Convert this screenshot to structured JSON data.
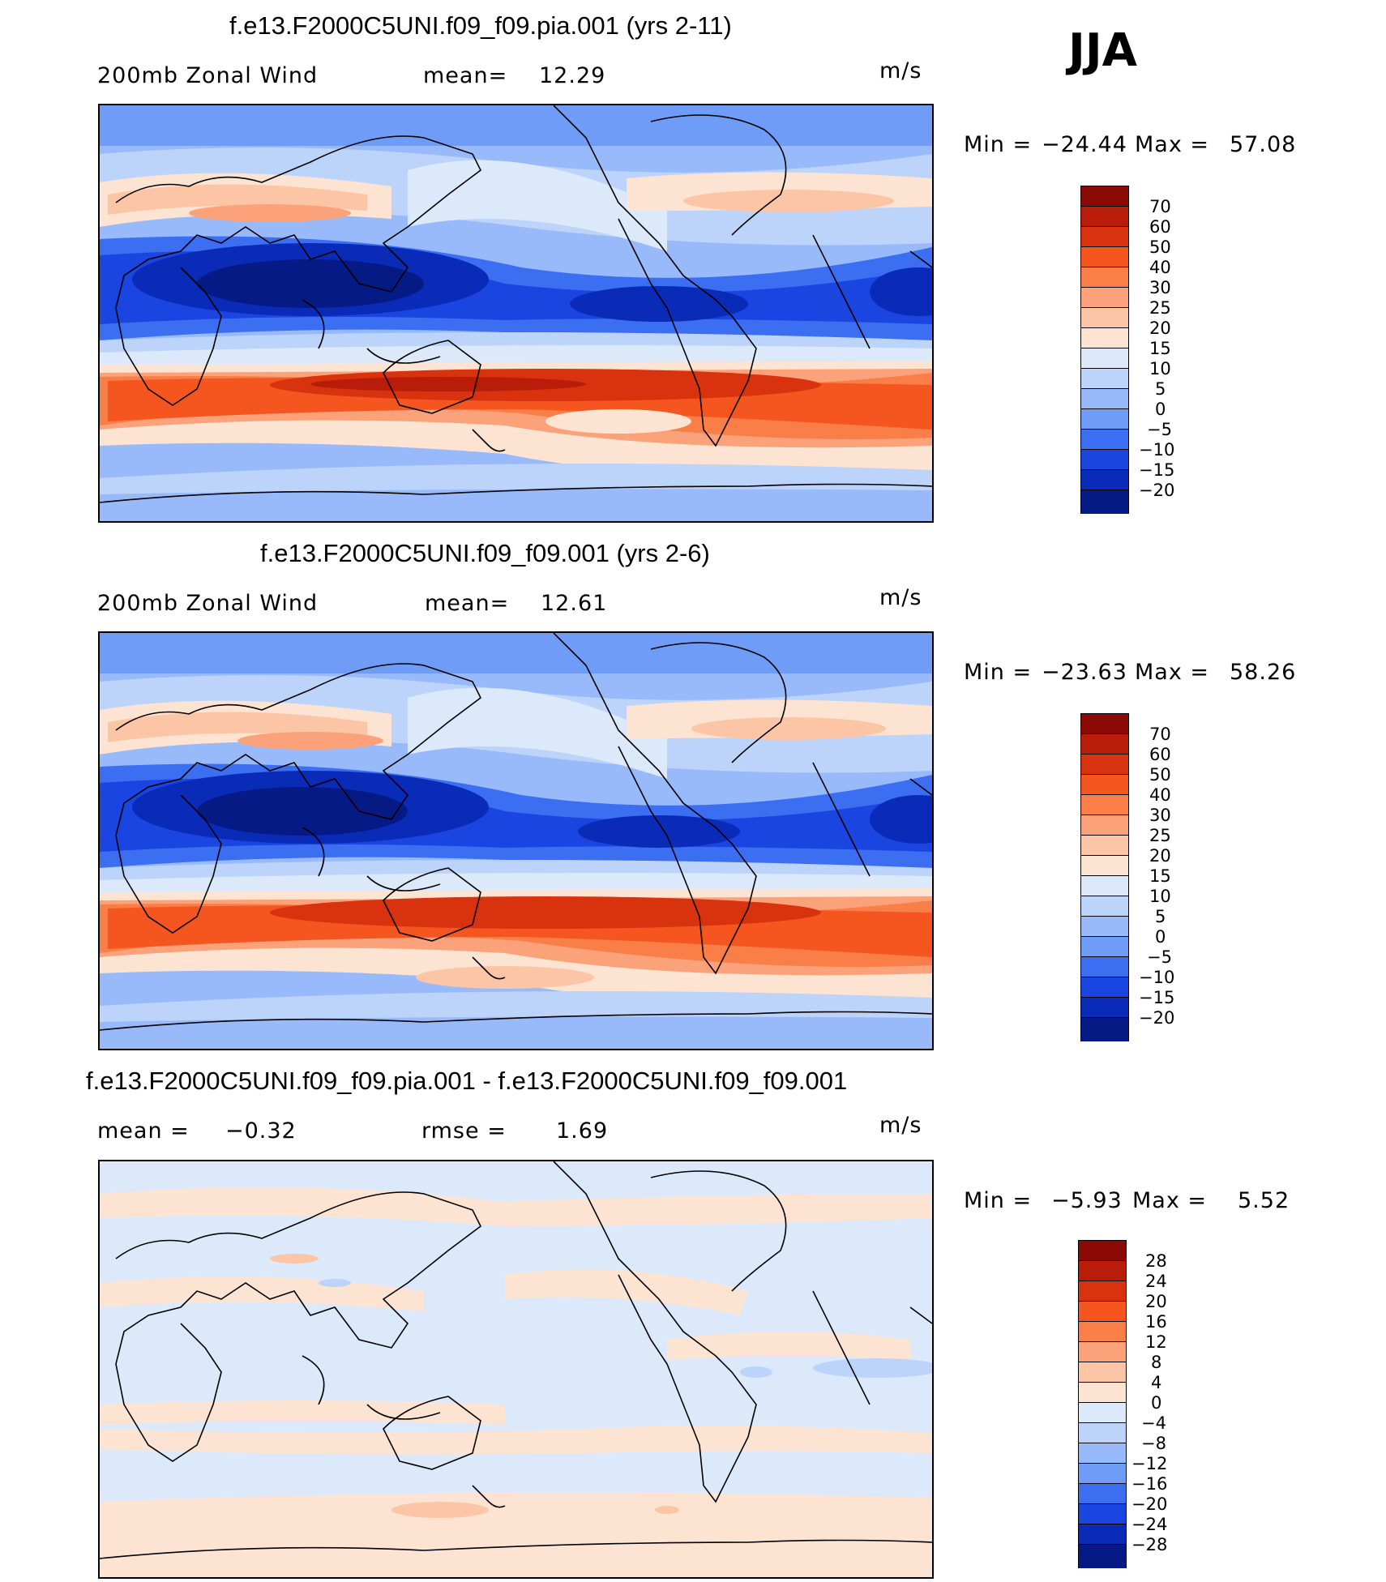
{
  "season": "JJA",
  "panels": [
    {
      "title": "f.e13.F2000C5UNI.f09_f09.pia.001 (yrs 2-11)",
      "field": "200mb Zonal Wind",
      "stat_left": "",
      "stat_label": "mean=",
      "stat_value": "12.29",
      "units": "m/s",
      "min_label": "Min =",
      "min_value": "−24.44",
      "max_label": "Max =",
      "max_value": "57.08",
      "colorbar_labels": [
        "70",
        "60",
        "50",
        "40",
        "30",
        "25",
        "20",
        "15",
        "10",
        "5",
        "0",
        "−5",
        "−10",
        "−15",
        "−20"
      ]
    },
    {
      "title": "f.e13.F2000C5UNI.f09_f09.001 (yrs 2-6)",
      "field": "200mb Zonal Wind",
      "stat_left": "",
      "stat_label": "mean=",
      "stat_value": "12.61",
      "units": "m/s",
      "min_label": "Min =",
      "min_value": "−23.63",
      "max_label": "Max =",
      "max_value": "58.26",
      "colorbar_labels": [
        "70",
        "60",
        "50",
        "40",
        "30",
        "25",
        "20",
        "15",
        "10",
        "5",
        "0",
        "−5",
        "−10",
        "−15",
        "−20"
      ]
    },
    {
      "title": "f.e13.F2000C5UNI.f09_f09.pia.001 - f.e13.F2000C5UNI.f09_f09.001",
      "field": "mean =",
      "stat_left": "−0.32",
      "stat_label": "rmse =",
      "stat_value": "1.69",
      "units": "m/s",
      "min_label": "Min =",
      "min_value": "−5.93",
      "max_label": "Max =",
      "max_value": "5.52",
      "colorbar_labels": [
        "28",
        "24",
        "20",
        "16",
        "12",
        "8",
        "4",
        "0",
        "−4",
        "−8",
        "−12",
        "−16",
        "−20",
        "−24",
        "−28"
      ]
    }
  ],
  "colors": {
    "abs_scale": [
      "#8b0a06",
      "#b81d0a",
      "#d9320e",
      "#f5561f",
      "#fa7e47",
      "#fba27a",
      "#fcc6a6",
      "#fde4d2",
      "#dce9fb",
      "#bcd3fa",
      "#98bafa",
      "#6f9cf6",
      "#3c6ef1",
      "#1a45e0",
      "#0a2bb8",
      "#061a85"
    ],
    "diff_scale": [
      "#8b0a06",
      "#b81d0a",
      "#d9320e",
      "#f5561f",
      "#fa7e47",
      "#fba27a",
      "#fcc6a6",
      "#fde4d2",
      "#dce9fb",
      "#bcd3fa",
      "#98bafa",
      "#6f9cf6",
      "#3c6ef1",
      "#1a45e0",
      "#0a2bb8",
      "#061a85"
    ]
  }
}
